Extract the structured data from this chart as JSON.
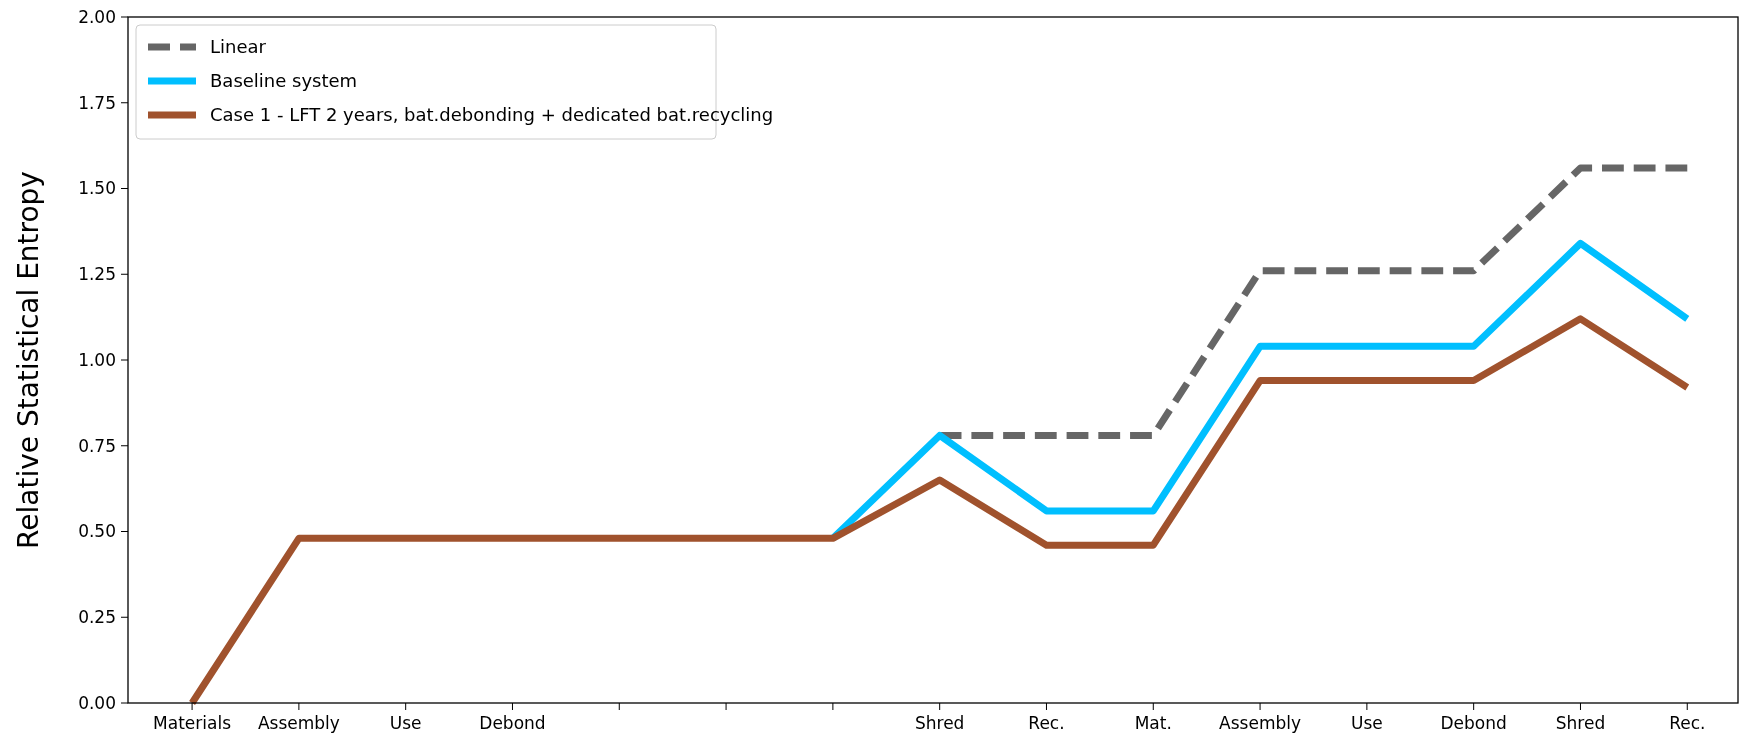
{
  "chart_data": {
    "type": "line",
    "ylabel": "Relative Statistical Entropy",
    "categories": [
      "Materials",
      "Assembly",
      "Use",
      "Debond",
      null,
      null,
      null,
      "Shred",
      "Rec.",
      "Mat.",
      "Assembly",
      "Use",
      "Debond",
      "Shred",
      "Rec."
    ],
    "series": [
      {
        "name": "Linear",
        "color": "#666666",
        "line_style": "dashed",
        "values": [
          null,
          null,
          null,
          null,
          null,
          null,
          null,
          0.78,
          0.78,
          0.78,
          1.26,
          1.26,
          1.26,
          1.56,
          1.56
        ]
      },
      {
        "name": "Baseline system",
        "color": "#00bfff",
        "line_style": "solid",
        "values": [
          null,
          null,
          null,
          null,
          null,
          null,
          0.48,
          0.78,
          0.56,
          0.56,
          1.04,
          1.04,
          1.04,
          1.34,
          1.12
        ]
      },
      {
        "name": "Case 1 - LFT 2 years, bat.debonding + dedicated bat.recycling",
        "color": "#a0522d",
        "line_style": "solid",
        "values": [
          0,
          0.48,
          0.48,
          0.48,
          0.48,
          0.48,
          0.48,
          0.65,
          0.46,
          0.46,
          0.94,
          0.94,
          0.94,
          1.12,
          0.92
        ]
      }
    ],
    "ylim": [
      0,
      2
    ],
    "yticks": [
      {
        "value": 0,
        "label": "0.00"
      },
      {
        "value": 0.25,
        "label": "0.25"
      },
      {
        "value": 0.5,
        "label": "0.50"
      },
      {
        "value": 0.75,
        "label": "0.75"
      },
      {
        "value": 1,
        "label": "1.00"
      },
      {
        "value": 1.25,
        "label": "1.25"
      },
      {
        "value": 1.5,
        "label": "1.50"
      },
      {
        "value": 1.75,
        "label": "1.75"
      },
      {
        "value": 2,
        "label": "2.00"
      }
    ],
    "grid": false,
    "legend": "top left",
    "marker": "none"
  }
}
